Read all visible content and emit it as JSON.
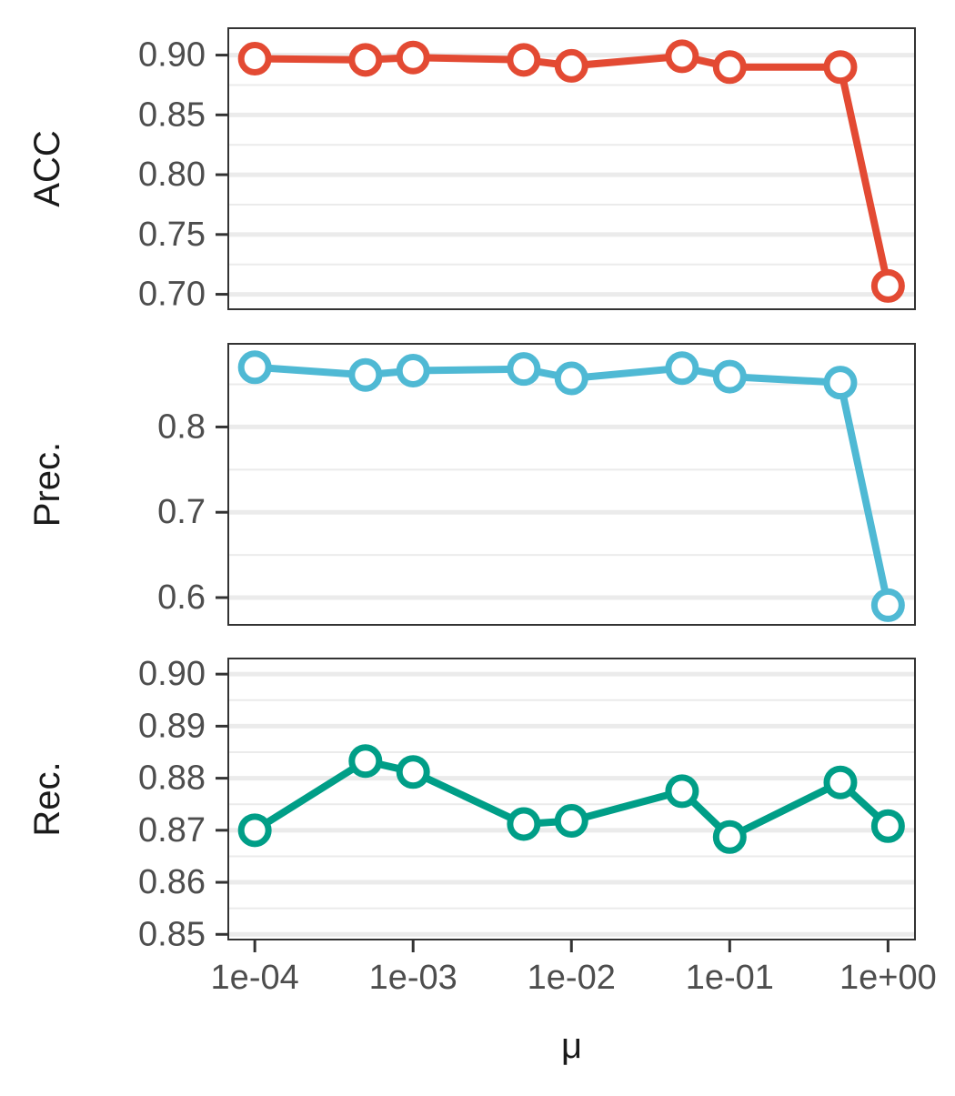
{
  "chart_data": {
    "type": "line",
    "x": [
      0.0001,
      0.0005,
      0.001,
      0.005,
      0.01,
      0.05,
      0.1,
      0.5,
      1
    ],
    "xscale": "log",
    "xlim": [
      6.8e-05,
      1.48
    ],
    "xlabel": "μ",
    "xticks": [
      0.0001,
      0.001,
      0.01,
      0.1,
      1
    ],
    "xtick_labels": [
      "1e-04",
      "1e-03",
      "1e-02",
      "1e-01",
      "1e+00"
    ],
    "grid": true,
    "panels": [
      {
        "ylabel": "ACC",
        "color": "#e34a33",
        "values": [
          0.897,
          0.896,
          0.898,
          0.896,
          0.891,
          0.899,
          0.89,
          0.89,
          0.707
        ],
        "ylim": [
          0.6875,
          0.9225
        ],
        "yticks": [
          0.7,
          0.75,
          0.8,
          0.85,
          0.9
        ],
        "ytick_labels": [
          "0.70",
          "0.75",
          "0.80",
          "0.85",
          "0.90"
        ],
        "minor_ticks": [
          0.725,
          0.775,
          0.825,
          0.875
        ]
      },
      {
        "ylabel": "Prec.",
        "color": "#4fb9d4",
        "values": [
          0.87,
          0.861,
          0.866,
          0.868,
          0.857,
          0.869,
          0.859,
          0.852,
          0.591
        ],
        "ylim": [
          0.568,
          0.8975
        ],
        "yticks": [
          0.6,
          0.7,
          0.8
        ],
        "ytick_labels": [
          "0.6",
          "0.7",
          "0.8"
        ],
        "minor_ticks": [
          0.65,
          0.75,
          0.85
        ]
      },
      {
        "ylabel": "Rec.",
        "color": "#009e87",
        "values": [
          0.87,
          0.8833,
          0.8812,
          0.8712,
          0.8718,
          0.8775,
          0.8687,
          0.8792,
          0.8708
        ],
        "ylim": [
          0.849,
          0.903
        ],
        "yticks": [
          0.85,
          0.86,
          0.87,
          0.88,
          0.89,
          0.9
        ],
        "ytick_labels": [
          "0.85",
          "0.86",
          "0.87",
          "0.88",
          "0.89",
          "0.90"
        ],
        "minor_ticks": [
          0.855,
          0.865,
          0.875,
          0.885,
          0.895
        ]
      }
    ]
  }
}
